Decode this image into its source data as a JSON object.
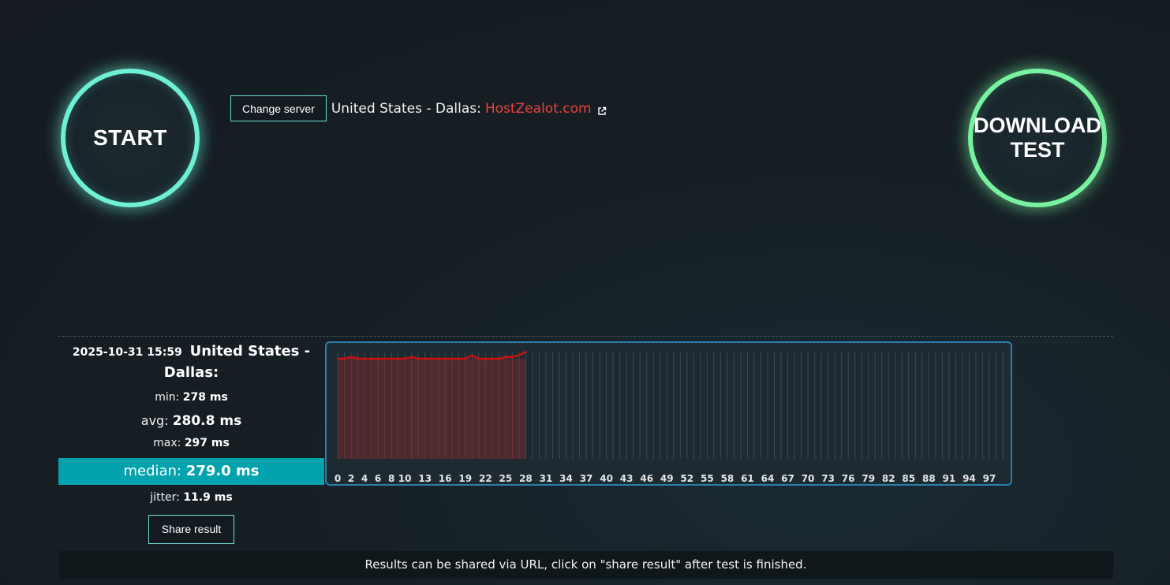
{
  "buttons": {
    "start": "START",
    "download_line1": "DOWNLOAD",
    "download_line2": "TEST",
    "change_server": "Change server",
    "share_result": "Share result"
  },
  "server": {
    "label": "United States - Dallas:",
    "host": "HostZealot.com"
  },
  "result": {
    "timestamp": "2025-10-31 15:59",
    "location": "United States - Dallas:",
    "min_label": "min:",
    "min_value": "278 ms",
    "avg_label": "avg:",
    "avg_value": "280.8 ms",
    "max_label": "max:",
    "max_value": "297 ms",
    "median_label": "median:",
    "median_value": "279.0 ms",
    "jitter_label": "jitter:",
    "jitter_value": "11.9 ms"
  },
  "footer": {
    "note": "Results can be shared via URL, click on \"share result\" after test is finished."
  },
  "colors": {
    "accent_start": "#6ef0d4",
    "accent_download": "#79f2a0",
    "host_link": "#e8413c",
    "median_bg": "#03a3ae",
    "chart_border": "#2b7fae",
    "chart_line": "#cc1111"
  },
  "icons": {
    "external_link": "external-link-icon"
  },
  "chart_data": {
    "type": "line",
    "x_ticks": [
      "0",
      "2",
      "4",
      "6",
      "8",
      "10",
      "13",
      "16",
      "19",
      "22",
      "25",
      "28",
      "31",
      "34",
      "37",
      "40",
      "43",
      "46",
      "49",
      "52",
      "55",
      "58",
      "61",
      "64",
      "67",
      "70",
      "73",
      "76",
      "79",
      "82",
      "85",
      "88",
      "91",
      "94",
      "97"
    ],
    "x": [
      0,
      1,
      2,
      3,
      4,
      5,
      6,
      7,
      8,
      9,
      10,
      11,
      12,
      13,
      14,
      15,
      16,
      17,
      18,
      19,
      20,
      21,
      22,
      23,
      24,
      25,
      26,
      27,
      28
    ],
    "values": [
      279,
      279,
      280,
      279,
      279,
      279,
      279,
      279,
      279,
      279,
      279,
      280,
      279,
      279,
      279,
      279,
      279,
      279,
      279,
      279,
      281,
      279,
      279,
      279,
      279,
      280,
      280,
      281,
      283
    ],
    "xlim": [
      0,
      99
    ],
    "grid": true
  }
}
